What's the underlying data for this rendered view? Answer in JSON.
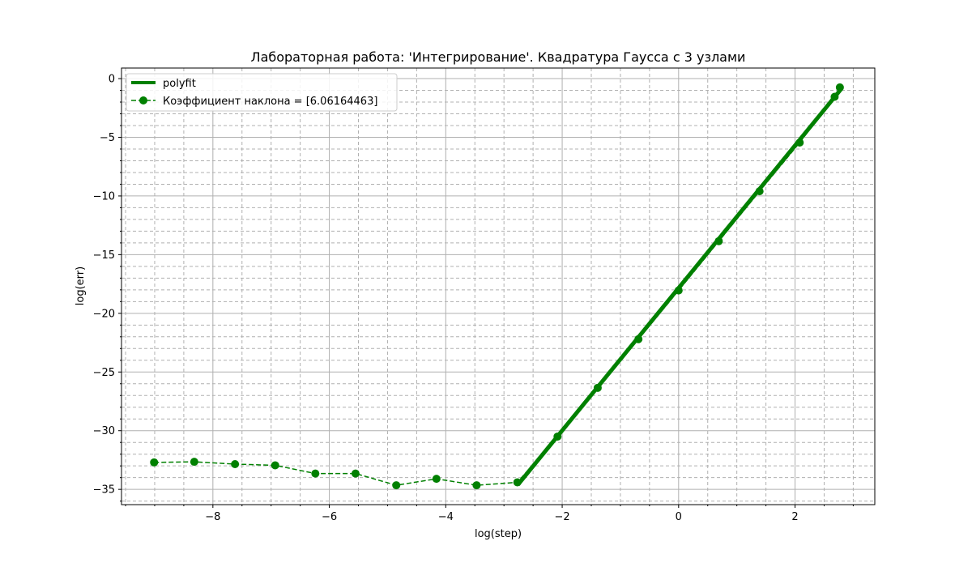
{
  "chart_data": {
    "type": "line",
    "title": "Лабораторная работа: 'Интегрирование'. Квадратура Гаусса с 3 узлами",
    "xlabel": "log(step)",
    "ylabel": "log(err)",
    "xlim": [
      -9.57,
      3.37
    ],
    "ylim": [
      -36.3,
      0.9
    ],
    "xticks": [
      -8,
      -6,
      -4,
      -2,
      0,
      2
    ],
    "yticks": [
      0,
      -5,
      -10,
      -15,
      -20,
      -25,
      -30,
      -35
    ],
    "grid": true,
    "minor_grid": true,
    "legend_position": "upper-left",
    "color": "#008000",
    "series": [
      {
        "name": "polyfit",
        "style": "solid-thick",
        "x": [
          -2.76,
          2.79
        ],
        "y": [
          -34.6,
          -0.9
        ]
      },
      {
        "name": "Коэффициент наклона = [6.06164463]",
        "style": "dashed-markers",
        "x": [
          -9.01,
          -8.32,
          -7.62,
          -6.93,
          -6.24,
          -5.55,
          -4.85,
          -4.16,
          -3.47,
          -2.77,
          -2.08,
          -1.39,
          -0.69,
          0.0,
          0.69,
          1.39,
          2.08,
          2.68,
          2.77
        ],
        "y": [
          -32.7,
          -32.65,
          -32.85,
          -32.95,
          -33.65,
          -33.65,
          -34.65,
          -34.1,
          -34.65,
          -34.4,
          -30.5,
          -26.35,
          -22.2,
          -18.05,
          -13.85,
          -9.6,
          -5.45,
          -1.55,
          -0.75
        ]
      }
    ]
  }
}
